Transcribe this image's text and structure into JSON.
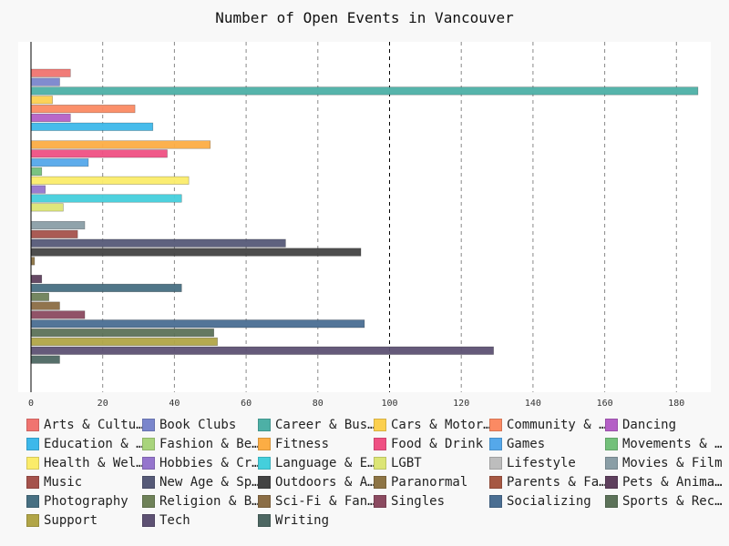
{
  "chart_data": {
    "type": "bar",
    "orientation": "horizontal",
    "title": "Number of Open Events in Vancouver",
    "xlabel": "",
    "ylabel": "",
    "xlim": [
      0,
      190
    ],
    "x_ticks": [
      0,
      20,
      40,
      60,
      80,
      100,
      120,
      140,
      160,
      180
    ],
    "grid": "vertical dashed",
    "reference_line": 100,
    "legend_position": "bottom",
    "series": [
      {
        "name": "Arts & Culture",
        "legend_label": "Arts & Cultu…",
        "value": 11,
        "color": "#f07470"
      },
      {
        "name": "Book Clubs",
        "legend_label": "Book Clubs",
        "value": 8,
        "color": "#7a86cc"
      },
      {
        "name": "Career & Business",
        "legend_label": "Career & Bus…",
        "value": 186,
        "color": "#4db0a6"
      },
      {
        "name": "Cars & Motorcycles",
        "legend_label": "Cars & Motor…",
        "value": 6,
        "color": "#fcd04f"
      },
      {
        "name": "Community & Environment",
        "legend_label": "Community & …",
        "value": 29,
        "color": "#fb8a63"
      },
      {
        "name": "Dancing",
        "legend_label": "Dancing",
        "value": 11,
        "color": "#b45fc6"
      },
      {
        "name": "Education & Learning",
        "legend_label": "Education & …",
        "value": 34,
        "color": "#3db8ea"
      },
      {
        "name": "Fashion & Beauty",
        "legend_label": "Fashion & Be…",
        "value": 0,
        "color": "#a8d47c"
      },
      {
        "name": "Fitness",
        "legend_label": "Fitness",
        "value": 50,
        "color": "#fcad44"
      },
      {
        "name": "Food & Drink",
        "legend_label": "Food & Drink",
        "value": 38,
        "color": "#ef5083"
      },
      {
        "name": "Games",
        "legend_label": "Games",
        "value": 16,
        "color": "#55a8ea"
      },
      {
        "name": "Movements & Politics",
        "legend_label": "Movements & …",
        "value": 3,
        "color": "#73c07a"
      },
      {
        "name": "Health & Wellbeing",
        "legend_label": "Health & Wel…",
        "value": 44,
        "color": "#fbec6a"
      },
      {
        "name": "Hobbies & Crafts",
        "legend_label": "Hobbies & Cr…",
        "value": 4,
        "color": "#9575cd"
      },
      {
        "name": "Language & Ethnic Identity",
        "legend_label": "Language & E…",
        "value": 42,
        "color": "#44cfdc"
      },
      {
        "name": "LGBT",
        "legend_label": "LGBT",
        "value": 9,
        "color": "#dce575"
      },
      {
        "name": "Lifestyle",
        "legend_label": "Lifestyle",
        "value": 0,
        "color": "#bdbdbd"
      },
      {
        "name": "Movies & Film",
        "legend_label": "Movies & Film",
        "value": 15,
        "color": "#8a9ea6"
      },
      {
        "name": "Music",
        "legend_label": "Music",
        "value": 13,
        "color": "#a5524c"
      },
      {
        "name": "New Age & Spirituality",
        "legend_label": "New Age & Sp…",
        "value": 71,
        "color": "#565a78"
      },
      {
        "name": "Outdoors & Adventure",
        "legend_label": "Outdoors & A…",
        "value": 92,
        "color": "#434343"
      },
      {
        "name": "Paranormal",
        "legend_label": "Paranormal",
        "value": 1,
        "color": "#8d7444"
      },
      {
        "name": "Parents & Family",
        "legend_label": "Parents & Fa…",
        "value": 0,
        "color": "#a65843"
      },
      {
        "name": "Pets & Animals",
        "legend_label": "Pets & Anima…",
        "value": 3,
        "color": "#5e3f5d"
      },
      {
        "name": "Photography",
        "legend_label": "Photography",
        "value": 42,
        "color": "#476f82"
      },
      {
        "name": "Religion & Beliefs",
        "legend_label": "Religion & B…",
        "value": 5,
        "color": "#6e8158"
      },
      {
        "name": "Sci-Fi & Fantasy",
        "legend_label": "Sci-Fi & Fan…",
        "value": 8,
        "color": "#8b6d45"
      },
      {
        "name": "Singles",
        "legend_label": "Singles",
        "value": 15,
        "color": "#8b4a60"
      },
      {
        "name": "Socializing",
        "legend_label": "Socializing",
        "value": 93,
        "color": "#4a6e92"
      },
      {
        "name": "Sports & Recreation",
        "legend_label": "Sports & Rec…",
        "value": 51,
        "color": "#5c7259"
      },
      {
        "name": "Support",
        "legend_label": "Support",
        "value": 52,
        "color": "#b1a547"
      },
      {
        "name": "Tech",
        "legend_label": "Tech",
        "value": 129,
        "color": "#5d5173"
      },
      {
        "name": "Writing",
        "legend_label": "Writing",
        "value": 8,
        "color": "#4d6762"
      }
    ]
  }
}
